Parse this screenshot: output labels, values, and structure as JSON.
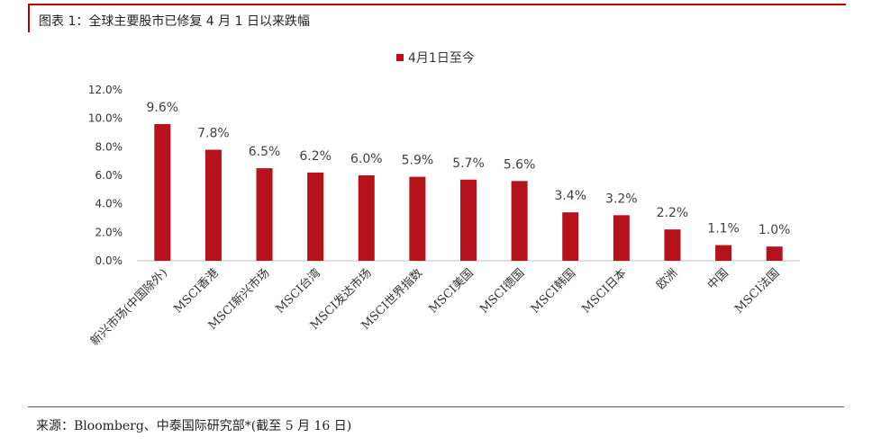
{
  "header": {
    "title": "图表 1：全球主要股市已修复 4 月 1 日以来跌幅"
  },
  "footer": {
    "source": "来源：Bloomberg、中泰国际研究部*(截至 5 月 16 日)"
  },
  "colors": {
    "bar": "#b5121b",
    "accent": "#c00000"
  },
  "chart_data": {
    "type": "bar",
    "title": "",
    "xlabel": "",
    "ylabel": "",
    "ylim": [
      0,
      12
    ],
    "yticks": [
      "0.0%",
      "2.0%",
      "4.0%",
      "6.0%",
      "8.0%",
      "10.0%",
      "12.0%"
    ],
    "grid": false,
    "legend": "top-center",
    "categories": [
      "新兴市场(中国除外)",
      "MSCI香港",
      "MSCI新兴市场",
      "MSCI台湾",
      "MSCI发达市场",
      "MSCI世界指数",
      "MSCI美国",
      "MSCI德国",
      "MSCI韩国",
      "MSCI日本",
      "欧洲",
      "中国",
      "MSCI法国"
    ],
    "series": [
      {
        "name": "4月1日至今",
        "values": [
          9.6,
          7.8,
          6.5,
          6.2,
          6.0,
          5.9,
          5.7,
          5.6,
          3.4,
          3.2,
          2.2,
          1.1,
          1.0
        ]
      }
    ],
    "data_labels": [
      "9.6%",
      "7.8%",
      "6.5%",
      "6.2%",
      "6.0%",
      "5.9%",
      "5.7%",
      "5.6%",
      "3.4%",
      "3.2%",
      "2.2%",
      "1.1%",
      "1.0%"
    ]
  }
}
